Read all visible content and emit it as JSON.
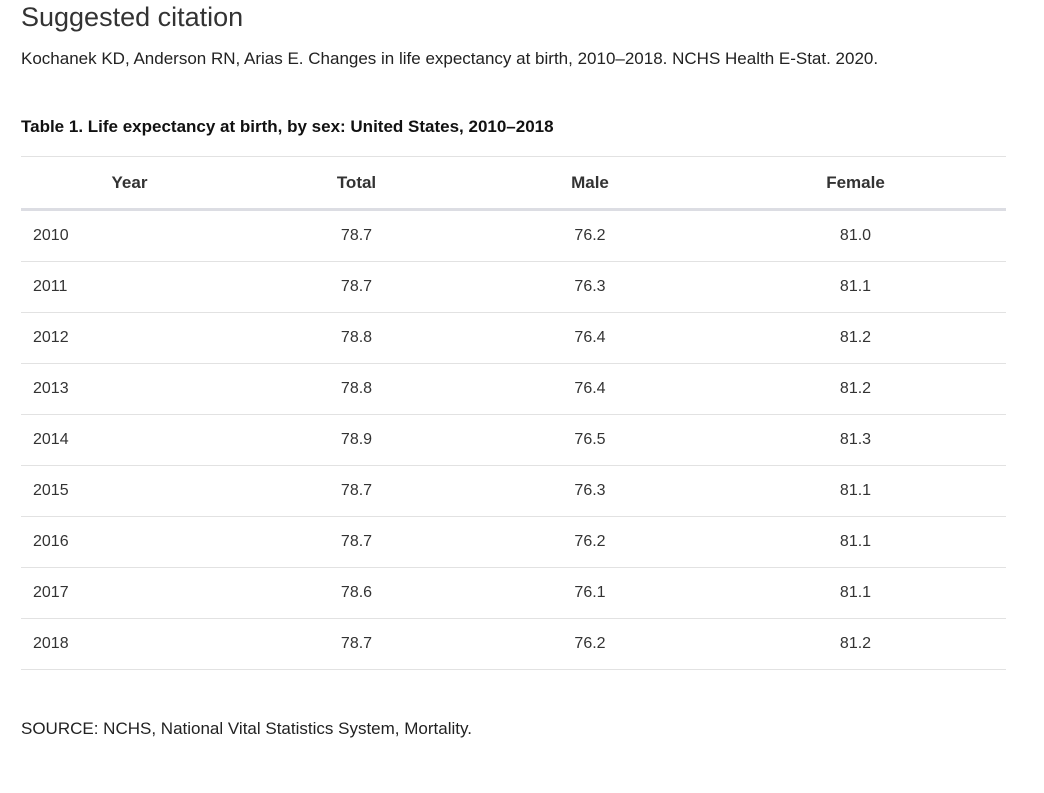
{
  "heading": "Suggested citation",
  "citation": "Kochanek KD, Anderson RN, Arias E. Changes in life expectancy at birth, 2010–2018. NCHS Health E-Stat. 2020.",
  "table": {
    "title": "Table 1. Life expectancy at birth, by sex: United States, 2010–2018",
    "columns": [
      "Year",
      "Total",
      "Male",
      "Female"
    ],
    "rows": [
      [
        "2010",
        "78.7",
        "76.2",
        "81.0"
      ],
      [
        "2011",
        "78.7",
        "76.3",
        "81.1"
      ],
      [
        "2012",
        "78.8",
        "76.4",
        "81.2"
      ],
      [
        "2013",
        "78.8",
        "76.4",
        "81.2"
      ],
      [
        "2014",
        "78.9",
        "76.5",
        "81.3"
      ],
      [
        "2015",
        "78.7",
        "76.3",
        "81.1"
      ],
      [
        "2016",
        "78.7",
        "76.2",
        "81.1"
      ],
      [
        "2017",
        "78.6",
        "76.1",
        "81.1"
      ],
      [
        "2018",
        "78.7",
        "76.2",
        "81.2"
      ]
    ]
  },
  "source": "SOURCE: NCHS, National Vital Statistics System, Mortality."
}
